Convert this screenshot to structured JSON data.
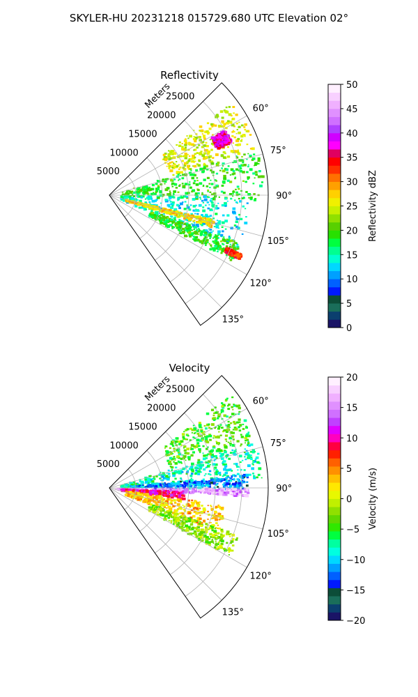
{
  "figure": {
    "title": "SKYLER-HU  20231218  015729.680 UTC Elevation 02°"
  },
  "colors": {
    "axis": "#000000",
    "grid": "#b0b0b0",
    "reflectivity_scale": [
      "#1a1466",
      "#0b3f6e",
      "#1a6e5a",
      "#0c4d38",
      "#0019ff",
      "#0060ff",
      "#00a0ff",
      "#00d8ff",
      "#00ffd0",
      "#00ff90",
      "#00ff40",
      "#28e000",
      "#58d000",
      "#90e000",
      "#c8f000",
      "#f0f000",
      "#ffd000",
      "#ffa000",
      "#ff7000",
      "#ff3000",
      "#ff0000",
      "#e00060",
      "#ff00ff",
      "#d000ff",
      "#b040ff",
      "#d070ff",
      "#e090ff",
      "#f0b0ff",
      "#f8d0ff",
      "#fff0ff"
    ],
    "velocity_scale": [
      "#1a1466",
      "#0b3f6e",
      "#1a6e5a",
      "#0c4d38",
      "#0019ff",
      "#0060ff",
      "#00a0ff",
      "#00d8ff",
      "#00ffe0",
      "#00ffa0",
      "#00ff40",
      "#30e800",
      "#60d800",
      "#90e000",
      "#c0f000",
      "#e8f800",
      "#ffe800",
      "#ffc000",
      "#ff9000",
      "#ff6000",
      "#ff2000",
      "#ff0040",
      "#ff00c0",
      "#e000ff",
      "#c040ff",
      "#d070ff",
      "#e090ff",
      "#f0b0ff",
      "#f8d0ff",
      "#fff0ff"
    ]
  },
  "chart_data": [
    {
      "type": "polar-sector-heatmap",
      "title": "Reflectivity",
      "radial_label": "Meters",
      "radial_ticks": [
        5000,
        10000,
        15000,
        20000,
        25000
      ],
      "radial_tick_labels": [
        "5000",
        "10000",
        "15000",
        "20000",
        "25000"
      ],
      "rmax": 30000,
      "theta_range_deg": [
        45,
        145
      ],
      "angle_ticks_deg": [
        60,
        75,
        90,
        105,
        120,
        135
      ],
      "angle_tick_labels": [
        "60°",
        "75°",
        "90°",
        "105°",
        "120°",
        "135°"
      ],
      "colorbar": {
        "label": "Reflectivity dBZ",
        "range": [
          0,
          50
        ],
        "ticks": [
          0,
          5,
          10,
          15,
          20,
          25,
          30,
          35,
          40,
          45,
          50
        ],
        "tick_labels": [
          "0",
          "5",
          "10",
          "15",
          "20",
          "25",
          "30",
          "35",
          "40",
          "45",
          "50"
        ]
      },
      "echo_regions": [
        {
          "theta": [
            52,
            72
          ],
          "r": [
            12000,
            29000
          ],
          "value": 25
        },
        {
          "theta": [
            60,
            66
          ],
          "r": [
            22000,
            25000
          ],
          "value": 37
        },
        {
          "theta": [
            72,
            92
          ],
          "r": [
            2000,
            29000
          ],
          "value": 19
        },
        {
          "theta": [
            90,
            112
          ],
          "r": [
            2000,
            26000
          ],
          "value": 14
        },
        {
          "theta": [
            103,
            107
          ],
          "r": [
            3000,
            20000
          ],
          "value": 27
        },
        {
          "theta": [
            110,
            118
          ],
          "r": [
            8000,
            26000
          ],
          "value": 19
        },
        {
          "theta": [
            114,
            116
          ],
          "r": [
            24000,
            27000
          ],
          "value": 33
        }
      ]
    },
    {
      "type": "polar-sector-heatmap",
      "title": "Velocity",
      "radial_label": "Meters",
      "radial_ticks": [
        5000,
        10000,
        15000,
        20000,
        25000
      ],
      "radial_tick_labels": [
        "5000",
        "10000",
        "15000",
        "20000",
        "25000"
      ],
      "rmax": 30000,
      "theta_range_deg": [
        45,
        145
      ],
      "angle_ticks_deg": [
        60,
        75,
        90,
        105,
        120,
        135
      ],
      "angle_tick_labels": [
        "60°",
        "75°",
        "90°",
        "105°",
        "120°",
        "135°"
      ],
      "colorbar": {
        "label": "Velocity (m/s)",
        "range": [
          -20,
          20
        ],
        "ticks": [
          -20,
          -15,
          -10,
          -5,
          0,
          5,
          10,
          15,
          20
        ],
        "tick_labels": [
          "−20",
          "−15",
          "−10",
          "−5",
          "0",
          "5",
          "10",
          "15",
          "20"
        ]
      },
      "echo_regions": [
        {
          "theta": [
            52,
            72
          ],
          "r": [
            12000,
            29000
          ],
          "value": -4
        },
        {
          "theta": [
            72,
            86
          ],
          "r": [
            2000,
            29000
          ],
          "value": -8
        },
        {
          "theta": [
            84,
            90
          ],
          "r": [
            4000,
            26000
          ],
          "value": -12
        },
        {
          "theta": [
            90,
            93
          ],
          "r": [
            1000,
            26000
          ],
          "value": 16
        },
        {
          "theta": [
            92,
            98
          ],
          "r": [
            2000,
            14000
          ],
          "value": 10
        },
        {
          "theta": [
            98,
            112
          ],
          "r": [
            3000,
            22000
          ],
          "value": 3
        },
        {
          "theta": [
            110,
            120
          ],
          "r": [
            8000,
            26000
          ],
          "value": -2
        }
      ]
    }
  ]
}
